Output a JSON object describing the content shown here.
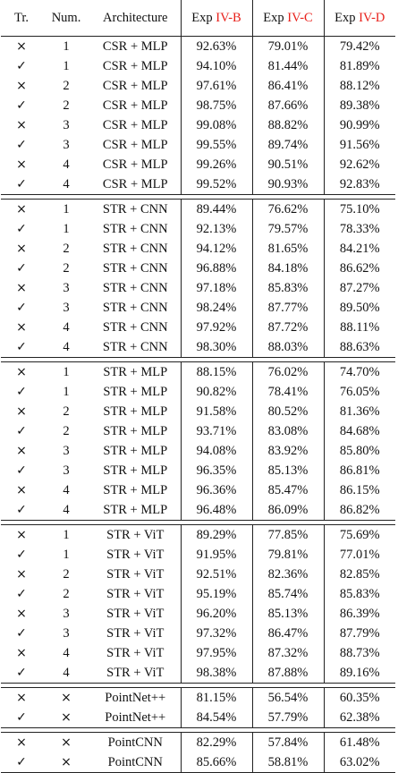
{
  "header": {
    "tr": "Tr.",
    "num": "Num.",
    "arch": "Architecture",
    "exp_b_prefix": "Exp",
    "exp_b_ref": "IV-B",
    "exp_c_prefix": "Exp",
    "exp_c_ref": "IV-C",
    "exp_d_prefix": "Exp",
    "exp_d_ref": "IV-D"
  },
  "marks": {
    "yes": "✓",
    "no": "×"
  },
  "colors": {
    "ref": "#e8201a",
    "text": "#111111",
    "rule": "#222222"
  },
  "groups": [
    {
      "rows": [
        {
          "tr": "no",
          "num": "1",
          "arch": "CSR + MLP",
          "b": "92.63%",
          "c": "79.01%",
          "d": "79.42%"
        },
        {
          "tr": "yes",
          "num": "1",
          "arch": "CSR + MLP",
          "b": "94.10%",
          "c": "81.44%",
          "d": "81.89%"
        },
        {
          "tr": "no",
          "num": "2",
          "arch": "CSR + MLP",
          "b": "97.61%",
          "c": "86.41%",
          "d": "88.12%"
        },
        {
          "tr": "yes",
          "num": "2",
          "arch": "CSR + MLP",
          "b": "98.75%",
          "c": "87.66%",
          "d": "89.38%"
        },
        {
          "tr": "no",
          "num": "3",
          "arch": "CSR + MLP",
          "b": "99.08%",
          "c": "88.82%",
          "d": "90.99%"
        },
        {
          "tr": "yes",
          "num": "3",
          "arch": "CSR + MLP",
          "b": "99.55%",
          "c": "89.74%",
          "d": "91.56%"
        },
        {
          "tr": "no",
          "num": "4",
          "arch": "CSR + MLP",
          "b": "99.26%",
          "c": "90.51%",
          "d": "92.62%"
        },
        {
          "tr": "yes",
          "num": "4",
          "arch": "CSR + MLP",
          "b": "99.52%",
          "c": "90.93%",
          "d": "92.83%"
        }
      ]
    },
    {
      "rows": [
        {
          "tr": "no",
          "num": "1",
          "arch": "STR + CNN",
          "b": "89.44%",
          "c": "76.62%",
          "d": "75.10%"
        },
        {
          "tr": "yes",
          "num": "1",
          "arch": "STR + CNN",
          "b": "92.13%",
          "c": "79.57%",
          "d": "78.33%"
        },
        {
          "tr": "no",
          "num": "2",
          "arch": "STR + CNN",
          "b": "94.12%",
          "c": "81.65%",
          "d": "84.21%"
        },
        {
          "tr": "yes",
          "num": "2",
          "arch": "STR + CNN",
          "b": "96.88%",
          "c": "84.18%",
          "d": "86.62%"
        },
        {
          "tr": "no",
          "num": "3",
          "arch": "STR + CNN",
          "b": "97.18%",
          "c": "85.83%",
          "d": "87.27%"
        },
        {
          "tr": "yes",
          "num": "3",
          "arch": "STR + CNN",
          "b": "98.24%",
          "c": "87.77%",
          "d": "89.50%"
        },
        {
          "tr": "no",
          "num": "4",
          "arch": "STR + CNN",
          "b": "97.92%",
          "c": "87.72%",
          "d": "88.11%"
        },
        {
          "tr": "yes",
          "num": "4",
          "arch": "STR + CNN",
          "b": "98.30%",
          "c": "88.03%",
          "d": "88.63%"
        }
      ]
    },
    {
      "rows": [
        {
          "tr": "no",
          "num": "1",
          "arch": "STR + MLP",
          "b": "88.15%",
          "c": "76.02%",
          "d": "74.70%"
        },
        {
          "tr": "yes",
          "num": "1",
          "arch": "STR + MLP",
          "b": "90.82%",
          "c": "78.41%",
          "d": "76.05%"
        },
        {
          "tr": "no",
          "num": "2",
          "arch": "STR + MLP",
          "b": "91.58%",
          "c": "80.52%",
          "d": "81.36%"
        },
        {
          "tr": "yes",
          "num": "2",
          "arch": "STR + MLP",
          "b": "93.71%",
          "c": "83.08%",
          "d": "84.68%"
        },
        {
          "tr": "no",
          "num": "3",
          "arch": "STR + MLP",
          "b": "94.08%",
          "c": "83.92%",
          "d": "85.80%"
        },
        {
          "tr": "yes",
          "num": "3",
          "arch": "STR + MLP",
          "b": "96.35%",
          "c": "85.13%",
          "d": "86.81%"
        },
        {
          "tr": "no",
          "num": "4",
          "arch": "STR + MLP",
          "b": "96.36%",
          "c": "85.47%",
          "d": "86.15%"
        },
        {
          "tr": "yes",
          "num": "4",
          "arch": "STR + MLP",
          "b": "96.48%",
          "c": "86.09%",
          "d": "86.82%"
        }
      ]
    },
    {
      "rows": [
        {
          "tr": "no",
          "num": "1",
          "arch": "STR + ViT",
          "b": "89.29%",
          "c": "77.85%",
          "d": "75.69%"
        },
        {
          "tr": "yes",
          "num": "1",
          "arch": "STR + ViT",
          "b": "91.95%",
          "c": "79.81%",
          "d": "77.01%"
        },
        {
          "tr": "no",
          "num": "2",
          "arch": "STR + ViT",
          "b": "92.51%",
          "c": "82.36%",
          "d": "82.85%"
        },
        {
          "tr": "yes",
          "num": "2",
          "arch": "STR + ViT",
          "b": "95.19%",
          "c": "85.74%",
          "d": "85.83%"
        },
        {
          "tr": "no",
          "num": "3",
          "arch": "STR + ViT",
          "b": "96.20%",
          "c": "85.13%",
          "d": "86.39%"
        },
        {
          "tr": "yes",
          "num": "3",
          "arch": "STR + ViT",
          "b": "97.32%",
          "c": "86.47%",
          "d": "87.79%"
        },
        {
          "tr": "no",
          "num": "4",
          "arch": "STR + ViT",
          "b": "97.95%",
          "c": "87.32%",
          "d": "88.73%"
        },
        {
          "tr": "yes",
          "num": "4",
          "arch": "STR + ViT",
          "b": "98.38%",
          "c": "87.88%",
          "d": "89.16%"
        }
      ]
    },
    {
      "rows": [
        {
          "tr": "no",
          "num": "×",
          "arch": "PointNet++",
          "b": "81.15%",
          "c": "56.54%",
          "d": "60.35%"
        },
        {
          "tr": "yes",
          "num": "×",
          "arch": "PointNet++",
          "b": "84.54%",
          "c": "57.79%",
          "d": "62.38%"
        }
      ]
    },
    {
      "rows": [
        {
          "tr": "no",
          "num": "×",
          "arch": "PointCNN",
          "b": "82.29%",
          "c": "57.84%",
          "d": "61.48%"
        },
        {
          "tr": "yes",
          "num": "×",
          "arch": "PointCNN",
          "b": "85.66%",
          "c": "58.81%",
          "d": "63.02%"
        }
      ]
    }
  ]
}
